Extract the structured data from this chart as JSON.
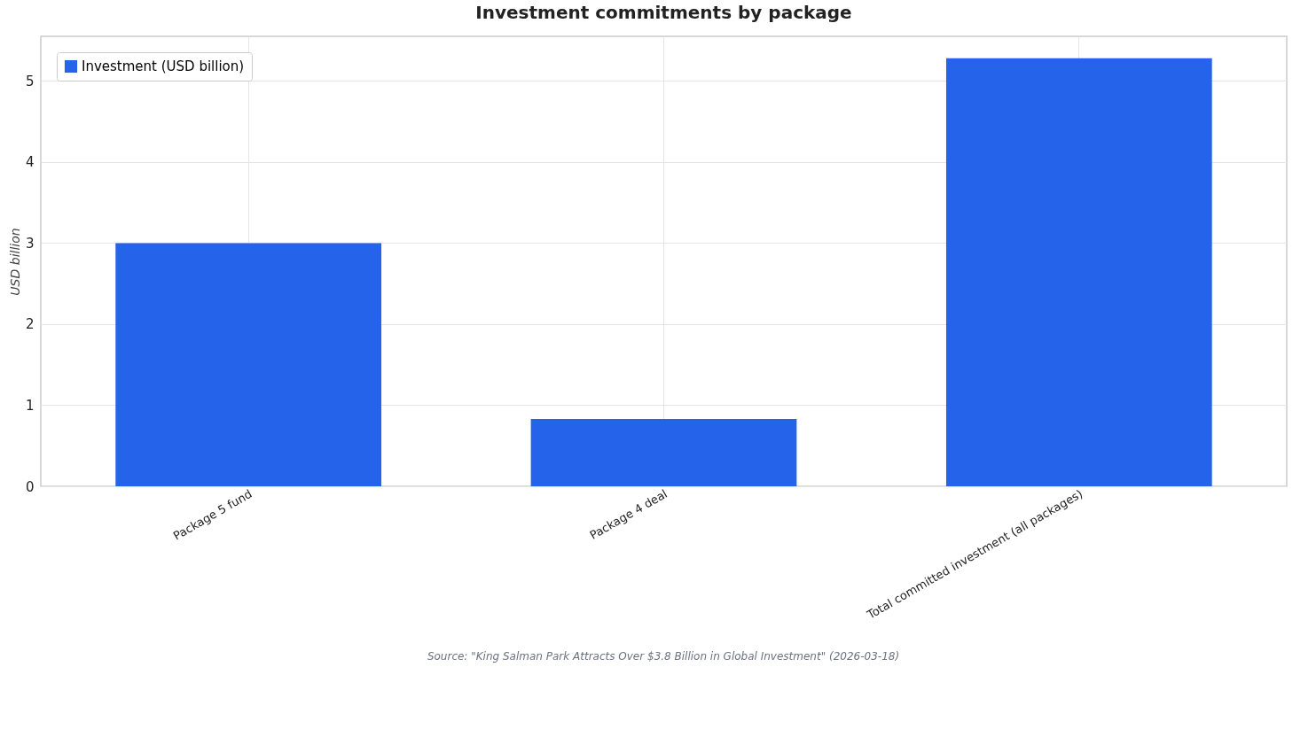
{
  "chart_data": {
    "type": "bar",
    "title": "Investment commitments by package",
    "categories": [
      "Package 5 fund",
      "Package 4 deal",
      "Total committed investment (all packages)"
    ],
    "series": [
      {
        "name": "Investment (USD billion)",
        "color": "#2563eb",
        "values": [
          3.0,
          0.83,
          5.28
        ]
      }
    ],
    "ylabel": "USD billion",
    "ylim": [
      0,
      5.55
    ],
    "yticks": [
      0,
      1,
      2,
      3,
      4,
      5
    ],
    "grid": true,
    "legend": "top left",
    "annotations": [
      "Source: \"King Salman Park Attracts Over $3.8 Billion in Global Investment\" (2026-03-18)"
    ]
  }
}
